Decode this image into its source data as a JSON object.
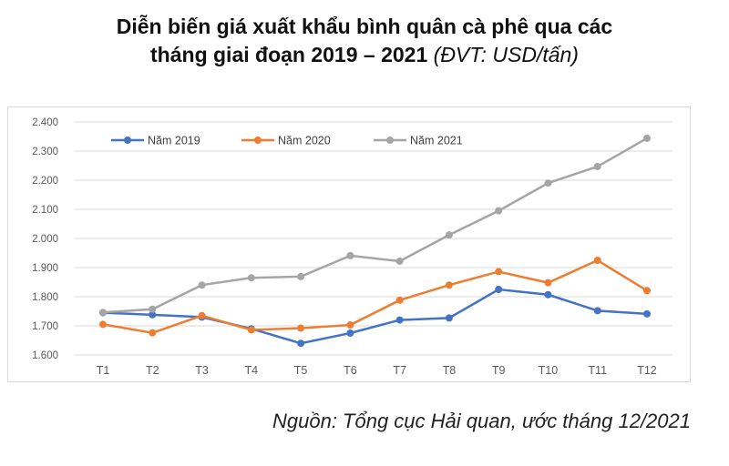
{
  "title_line1": "Diễn biến giá xuất khẩu bình quân cà phê qua các",
  "title_line2": "tháng giai đoạn 2019 – 2021",
  "title_unit": "(ĐVT: USD/tấn)",
  "source": "Nguồn: Tổng cục Hải quan, ước tháng 12/2021",
  "chart_data": {
    "type": "line",
    "categories": [
      "T1",
      "T2",
      "T3",
      "T4",
      "T5",
      "T6",
      "T7",
      "T8",
      "T9",
      "T10",
      "T11",
      "T12"
    ],
    "ylim": [
      1600,
      2400
    ],
    "yticks": [
      1600,
      1700,
      1800,
      1900,
      2000,
      2100,
      2200,
      2300,
      2400
    ],
    "ytick_labels": [
      "1.600",
      "1.700",
      "1.800",
      "1.900",
      "2.000",
      "2.100",
      "2.200",
      "2.300",
      "2.400"
    ],
    "grid": true,
    "legend_placement": "top",
    "series": [
      {
        "name": "Năm 2019",
        "color": "#4472c4",
        "values": [
          1745,
          1738,
          1730,
          1690,
          1640,
          1675,
          1720,
          1727,
          1825,
          1807,
          1752,
          1741
        ]
      },
      {
        "name": "Năm 2020",
        "color": "#ed7d31",
        "values": [
          1705,
          1676,
          1735,
          1686,
          1692,
          1703,
          1788,
          1840,
          1886,
          1848,
          1925,
          1821
        ]
      },
      {
        "name": "Năm 2021",
        "color": "#a5a5a5",
        "values": [
          1746,
          1757,
          1840,
          1865,
          1869,
          1941,
          1922,
          2012,
          2095,
          2190,
          2247,
          2344
        ]
      }
    ]
  }
}
